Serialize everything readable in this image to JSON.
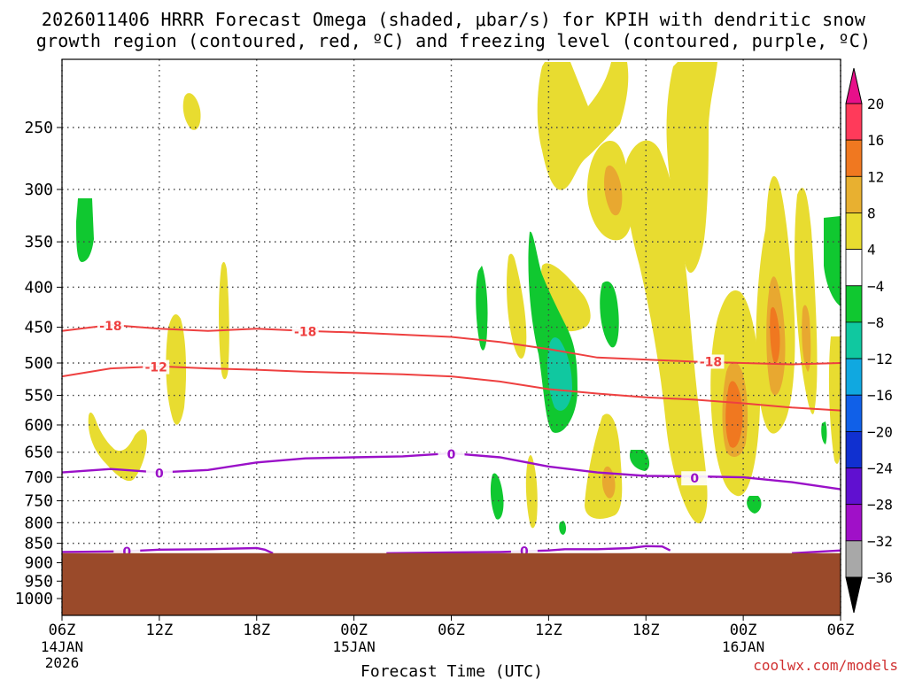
{
  "title_line1": "2026011406 HRRR Forecast Omega (shaded, μbar/s) for KPIH with dendritic snow",
  "title_line2": "growth region (contoured, red, ºC) and freezing level (contoured, purple, ºC)",
  "watermark": "coolwx.com/models",
  "chart_data": {
    "type": "contour",
    "title": "2026011406 HRRR Forecast Omega (shaded, μbar/s) for KPIH with dendritic snow growth region (contoured, red, ºC) and freezing level (contoured, purple, ºC)",
    "xlabel": "Forecast Time (UTC)",
    "ylabel": "",
    "x_range_hours": [
      0,
      48
    ],
    "x_ticks": [
      {
        "hour": 0,
        "label": "06Z",
        "sub": "14JAN",
        "sub2": "2026"
      },
      {
        "hour": 6,
        "label": "12Z",
        "sub": "",
        "sub2": ""
      },
      {
        "hour": 12,
        "label": "18Z",
        "sub": "",
        "sub2": ""
      },
      {
        "hour": 18,
        "label": "00Z",
        "sub": "15JAN",
        "sub2": ""
      },
      {
        "hour": 24,
        "label": "06Z",
        "sub": "",
        "sub2": ""
      },
      {
        "hour": 30,
        "label": "12Z",
        "sub": "",
        "sub2": ""
      },
      {
        "hour": 36,
        "label": "18Z",
        "sub": "",
        "sub2": ""
      },
      {
        "hour": 42,
        "label": "00Z",
        "sub": "16JAN",
        "sub2": ""
      },
      {
        "hour": 48,
        "label": "06Z",
        "sub": "",
        "sub2": ""
      }
    ],
    "y_range_hpa": [
      200,
      1050
    ],
    "y_ticks": [
      250,
      300,
      350,
      400,
      450,
      500,
      550,
      600,
      650,
      700,
      750,
      800,
      850,
      900,
      950,
      1000
    ],
    "gridlines": true,
    "surface_pressure_hpa": 875,
    "colorbar": {
      "labels": [
        "20",
        "16",
        "12",
        "8",
        "4",
        "−4",
        "−8",
        "−12",
        "−16",
        "−20",
        "−24",
        "−28",
        "−32",
        "−36"
      ],
      "colors": [
        "#ff3a5a",
        "#f07820",
        "#e8b030",
        "#e8dc30",
        "#ffffff",
        "#10c830",
        "#10c8a0",
        "#10a8e0",
        "#1060e8",
        "#1030d0",
        "#6010d0",
        "#a010c8",
        "#a8a8a8"
      ],
      "top_arrow_color": "#e8108a",
      "bottom_arrow_color": "#000000"
    },
    "dgz_contours": [
      {
        "label": "-18",
        "color": "#ee4040",
        "points": [
          [
            0,
            455
          ],
          [
            3,
            447
          ],
          [
            6,
            452
          ],
          [
            9,
            455
          ],
          [
            12,
            452
          ],
          [
            15,
            455
          ],
          [
            18,
            457
          ],
          [
            21,
            460
          ],
          [
            24,
            463
          ],
          [
            27,
            470
          ],
          [
            30,
            480
          ],
          [
            33,
            492
          ],
          [
            36,
            495
          ],
          [
            39,
            498
          ],
          [
            42,
            500
          ],
          [
            45,
            502
          ],
          [
            48,
            500
          ]
        ],
        "labels_at": [
          [
            3,
            448
          ],
          [
            15,
            456
          ],
          [
            40,
            498
          ]
        ]
      },
      {
        "label": "-12",
        "color": "#ee4040",
        "points": [
          [
            0,
            520
          ],
          [
            3,
            508
          ],
          [
            6,
            505
          ],
          [
            9,
            508
          ],
          [
            12,
            510
          ],
          [
            15,
            513
          ],
          [
            18,
            515
          ],
          [
            21,
            517
          ],
          [
            24,
            520
          ],
          [
            27,
            528
          ],
          [
            30,
            540
          ],
          [
            33,
            547
          ],
          [
            36,
            553
          ],
          [
            39,
            557
          ],
          [
            42,
            563
          ],
          [
            45,
            570
          ],
          [
            48,
            575
          ]
        ],
        "labels_at": [
          [
            5.8,
            506
          ]
        ]
      }
    ],
    "freezing_level": [
      {
        "label": "0",
        "color": "#9a10c8",
        "points": [
          [
            0,
            690
          ],
          [
            3,
            683
          ],
          [
            6,
            690
          ],
          [
            9,
            685
          ],
          [
            12,
            670
          ],
          [
            15,
            662
          ],
          [
            18,
            660
          ],
          [
            21,
            658
          ],
          [
            24,
            652
          ],
          [
            27,
            660
          ],
          [
            30,
            678
          ],
          [
            33,
            690
          ],
          [
            36,
            697
          ],
          [
            39,
            698
          ],
          [
            42,
            700
          ],
          [
            45,
            710
          ],
          [
            48,
            725
          ]
        ],
        "labels_at": [
          [
            6,
            692
          ],
          [
            24,
            654
          ],
          [
            39,
            702
          ]
        ]
      },
      {
        "label": "0",
        "color": "#9a10c8",
        "points": [
          [
            0,
            872
          ],
          [
            4,
            870
          ],
          [
            6,
            866
          ],
          [
            9,
            865
          ],
          [
            12,
            862
          ],
          [
            12.5,
            866
          ],
          [
            13,
            875
          ]
        ],
        "labels_at": [
          [
            4,
            871
          ]
        ]
      },
      {
        "label": "0",
        "color": "#9a10c8",
        "points": [
          [
            20,
            875
          ],
          [
            24,
            873
          ],
          [
            27,
            872
          ],
          [
            30,
            868
          ],
          [
            31,
            865
          ],
          [
            33,
            865
          ],
          [
            35,
            862
          ],
          [
            36,
            857
          ],
          [
            37,
            858
          ],
          [
            37.5,
            868
          ]
        ],
        "labels_at": [
          [
            28.5,
            870
          ]
        ]
      },
      {
        "label": "0",
        "color": "#9a10c8",
        "points": [
          [
            45,
            875
          ],
          [
            48,
            868
          ]
        ],
        "labels_at": []
      }
    ]
  }
}
